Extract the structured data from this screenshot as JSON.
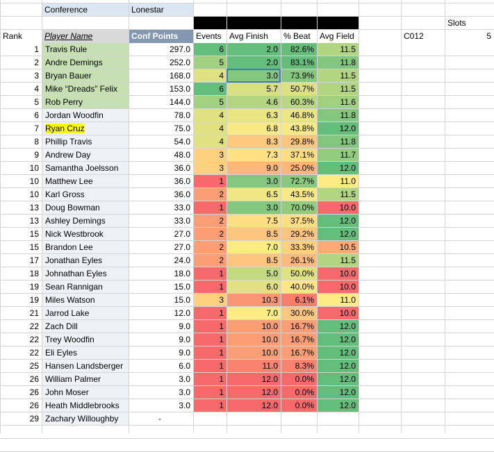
{
  "header": {
    "conference_label": "Conference",
    "conference_value": "Lonestar",
    "slots_label": "Slots",
    "code": "C012",
    "slots_value": "5"
  },
  "columns": [
    "Rank",
    "Player Name",
    "Conf Points",
    "Events",
    "Avg Finish",
    "% Beat",
    "Avg Field"
  ],
  "colors": {
    "top_green": "#c6e0b4",
    "name_light": "#eef1f6",
    "green": "#63be7b",
    "yellow": "#ffeb84",
    "red": "#f8696b",
    "points_header": "#8497b0",
    "label_header": "#dce6f1",
    "highlight": "#ffff00"
  },
  "rows": [
    {
      "rank": "1",
      "name": "Travis Rule",
      "points": "297.0",
      "events": "6",
      "avg_finish": "2.0",
      "pct_beat": "82.6%",
      "avg_field": "11.5"
    },
    {
      "rank": "2",
      "name": "Andre Demings",
      "points": "252.0",
      "events": "5",
      "avg_finish": "2.0",
      "pct_beat": "83.1%",
      "avg_field": "11.8"
    },
    {
      "rank": "3",
      "name": "Bryan Bauer",
      "points": "168.0",
      "events": "4",
      "avg_finish": "3.0",
      "pct_beat": "73.9%",
      "avg_field": "11.5"
    },
    {
      "rank": "4",
      "name": "Mike “Dreads” Felix",
      "points": "153.0",
      "events": "6",
      "avg_finish": "5.7",
      "pct_beat": "50.7%",
      "avg_field": "11.5"
    },
    {
      "rank": "5",
      "name": "Rob Perry",
      "points": "144.0",
      "events": "5",
      "avg_finish": "4.6",
      "pct_beat": "60.3%",
      "avg_field": "11.6"
    },
    {
      "rank": "6",
      "name": "Jordan Woodfin",
      "points": "78.0",
      "events": "4",
      "avg_finish": "6.3",
      "pct_beat": "46.8%",
      "avg_field": "11.8"
    },
    {
      "rank": "7",
      "name": "Ryan Cruz",
      "points": "75.0",
      "events": "4",
      "avg_finish": "6.8",
      "pct_beat": "43.8%",
      "avg_field": "12.0"
    },
    {
      "rank": "8",
      "name": "Phillip Travis",
      "points": "54.0",
      "events": "4",
      "avg_finish": "8.3",
      "pct_beat": "29.8%",
      "avg_field": "11.8"
    },
    {
      "rank": "9",
      "name": "Andrew Day",
      "points": "48.0",
      "events": "3",
      "avg_finish": "7.3",
      "pct_beat": "37.1%",
      "avg_field": "11.7"
    },
    {
      "rank": "10",
      "name": "Samantha Joelsson",
      "points": "36.0",
      "events": "3",
      "avg_finish": "9.0",
      "pct_beat": "25.0%",
      "avg_field": "12.0"
    },
    {
      "rank": "10",
      "name": "Matthew Lee",
      "points": "36.0",
      "events": "1",
      "avg_finish": "3.0",
      "pct_beat": "72.7%",
      "avg_field": "11.0"
    },
    {
      "rank": "10",
      "name": "Karl Gross",
      "points": "36.0",
      "events": "2",
      "avg_finish": "6.5",
      "pct_beat": "43.5%",
      "avg_field": "11.5"
    },
    {
      "rank": "13",
      "name": "Doug Bowman",
      "points": "33.0",
      "events": "1",
      "avg_finish": "3.0",
      "pct_beat": "70.0%",
      "avg_field": "10.0"
    },
    {
      "rank": "13",
      "name": "Ashley Demings",
      "points": "33.0",
      "events": "2",
      "avg_finish": "7.5",
      "pct_beat": "37.5%",
      "avg_field": "12.0"
    },
    {
      "rank": "15",
      "name": "Nick Westbrook",
      "points": "27.0",
      "events": "2",
      "avg_finish": "8.5",
      "pct_beat": "29.2%",
      "avg_field": "12.0"
    },
    {
      "rank": "15",
      "name": "Brandon Lee",
      "points": "27.0",
      "events": "2",
      "avg_finish": "7.0",
      "pct_beat": "33.3%",
      "avg_field": "10.5"
    },
    {
      "rank": "17",
      "name": "Jonathan Eyles",
      "points": "24.0",
      "events": "2",
      "avg_finish": "8.5",
      "pct_beat": "26.1%",
      "avg_field": "11.5"
    },
    {
      "rank": "18",
      "name": "Johnathan Eyles",
      "points": "18.0",
      "events": "1",
      "avg_finish": "5.0",
      "pct_beat": "50.0%",
      "avg_field": "10.0"
    },
    {
      "rank": "19",
      "name": "Sean Rannigan",
      "points": "15.0",
      "events": "1",
      "avg_finish": "6.0",
      "pct_beat": "40.0%",
      "avg_field": "10.0"
    },
    {
      "rank": "19",
      "name": "Miles Watson",
      "points": "15.0",
      "events": "3",
      "avg_finish": "10.3",
      "pct_beat": "6.1%",
      "avg_field": "11.0"
    },
    {
      "rank": "21",
      "name": "Jarrod Lake",
      "points": "12.0",
      "events": "1",
      "avg_finish": "7.0",
      "pct_beat": "30.0%",
      "avg_field": "10.0"
    },
    {
      "rank": "22",
      "name": "Zach Dill",
      "points": "9.0",
      "events": "1",
      "avg_finish": "10.0",
      "pct_beat": "16.7%",
      "avg_field": "12.0"
    },
    {
      "rank": "22",
      "name": "Trey Woodfin",
      "points": "9.0",
      "events": "1",
      "avg_finish": "10.0",
      "pct_beat": "16.7%",
      "avg_field": "12.0"
    },
    {
      "rank": "22",
      "name": "Eli Eyles",
      "points": "9.0",
      "events": "1",
      "avg_finish": "10.0",
      "pct_beat": "16.7%",
      "avg_field": "12.0"
    },
    {
      "rank": "25",
      "name": "Hansen Landsberger",
      "points": "6.0",
      "events": "1",
      "avg_finish": "11.0",
      "pct_beat": "8.3%",
      "avg_field": "12.0"
    },
    {
      "rank": "26",
      "name": "William Palmer",
      "points": "3.0",
      "events": "1",
      "avg_finish": "12.0",
      "pct_beat": "0.0%",
      "avg_field": "12.0"
    },
    {
      "rank": "26",
      "name": "John Moser",
      "points": "3.0",
      "events": "1",
      "avg_finish": "12.0",
      "pct_beat": "0.0%",
      "avg_field": "12.0"
    },
    {
      "rank": "26",
      "name": "Heath Middlebrooks",
      "points": "3.0",
      "events": "1",
      "avg_finish": "12.0",
      "pct_beat": "0.0%",
      "avg_field": "12.0"
    },
    {
      "rank": "29",
      "name": "Zachary Willoughby",
      "points": "-",
      "events": "",
      "avg_finish": "",
      "pct_beat": "",
      "avg_field": ""
    }
  ]
}
